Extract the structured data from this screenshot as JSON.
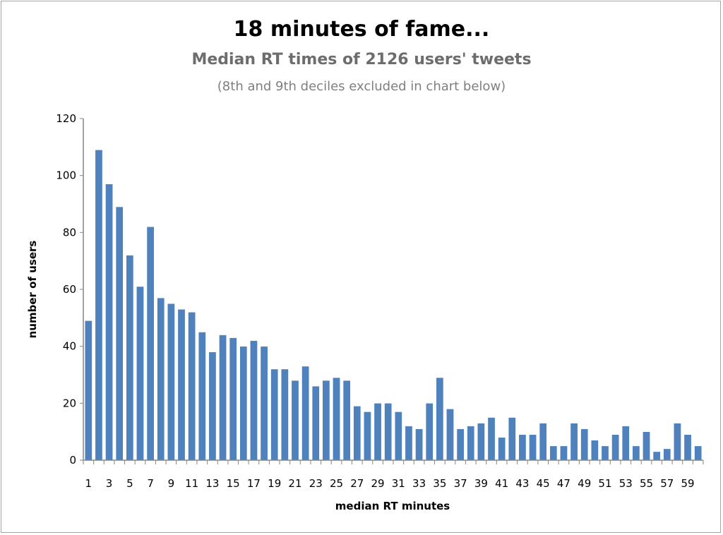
{
  "chart_data": {
    "type": "bar",
    "title": "18 minutes of fame...",
    "subtitle": "Median RT times of 2126 users' tweets",
    "note": "(8th and 9th deciles excluded in chart below)",
    "xlabel": "median RT minutes",
    "ylabel": "number of users",
    "ylim": [
      0,
      120
    ],
    "yticks": [
      0,
      20,
      40,
      60,
      80,
      100,
      120
    ],
    "categories": [
      1,
      2,
      3,
      4,
      5,
      6,
      7,
      8,
      9,
      10,
      11,
      12,
      13,
      14,
      15,
      16,
      17,
      18,
      19,
      20,
      21,
      22,
      23,
      24,
      25,
      26,
      27,
      28,
      29,
      30,
      31,
      32,
      33,
      34,
      35,
      36,
      37,
      38,
      39,
      40,
      41,
      42,
      43,
      44,
      45,
      46,
      47,
      48,
      49,
      50,
      51,
      52,
      53,
      54,
      55,
      56,
      57,
      58,
      59,
      60
    ],
    "xtick_labels_shown": "odd categories",
    "values": [
      49,
      109,
      97,
      89,
      72,
      61,
      82,
      57,
      55,
      53,
      52,
      45,
      38,
      44,
      43,
      40,
      42,
      40,
      32,
      32,
      28,
      33,
      26,
      28,
      29,
      28,
      19,
      17,
      20,
      20,
      17,
      12,
      11,
      20,
      29,
      18,
      11,
      12,
      13,
      15,
      8,
      15,
      9,
      9,
      13,
      5,
      5,
      13,
      11,
      7,
      5,
      9,
      12,
      5,
      10,
      3,
      4,
      13,
      9,
      5
    ],
    "bar_color": "#4f81bd",
    "grid": false,
    "legend": "none"
  }
}
